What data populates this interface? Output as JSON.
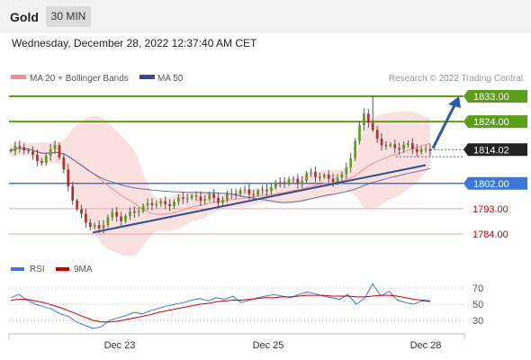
{
  "header": {
    "symbol": "Gold",
    "timeframe": "30 MIN",
    "datetime": "Wednesday, December 28, 2022 12:37:40 AM CET"
  },
  "chart_data": [
    {
      "type": "candlestick",
      "title": "Gold",
      "legend": [
        {
          "name": "MA 20 + Bollinger Bands",
          "color": "#f28e8e"
        },
        {
          "name": "MA 50",
          "color": "#2f4f8c"
        }
      ],
      "watermark": "Research © 2022 Trading Central",
      "ylim": [
        1780,
        1835
      ],
      "current_price": {
        "value": "1814.02",
        "color": "#222222"
      },
      "levels": [
        {
          "label": "1833.00",
          "value": 1833.0,
          "kind": "resistance",
          "color": "#5a9e1a"
        },
        {
          "label": "1824.00",
          "value": 1824.0,
          "kind": "resistance",
          "color": "#5a9e1a"
        },
        {
          "label": "1802.00",
          "value": 1802.0,
          "kind": "pivot",
          "color": "#3c78d8"
        },
        {
          "label": "1793.00",
          "value": 1793.0,
          "kind": "support",
          "color": "#cc0000"
        },
        {
          "label": "1784.00",
          "value": 1784.0,
          "kind": "support",
          "color": "#cc0000"
        }
      ],
      "trendline": {
        "from": 1784.5,
        "to": 1808.5,
        "color": "#2f4f8c"
      },
      "projection_arrow": {
        "from": 1814.5,
        "to": 1833.0,
        "color": "#2f5aa0"
      },
      "x_ticks": [
        "Dec 23",
        "Dec 25",
        "Dec 28"
      ],
      "price_path": [
        1813,
        1815,
        1812,
        1810,
        1816,
        1803,
        1793,
        1788,
        1785,
        1791,
        1790,
        1792,
        1793,
        1795,
        1795,
        1796,
        1797,
        1796,
        1798,
        1796,
        1798,
        1799,
        1799,
        1800,
        1801,
        1803,
        1803,
        1806,
        1804,
        1803,
        1805,
        1814,
        1827,
        1818,
        1816,
        1815,
        1815,
        1813,
        1815
      ]
    },
    {
      "type": "line",
      "title": "RSI",
      "series": [
        {
          "name": "RSI",
          "color": "#3c78d8",
          "values": [
            58,
            62,
            55,
            50,
            47,
            44,
            38,
            35,
            28,
            24,
            20,
            22,
            30,
            33,
            36,
            40,
            38,
            42,
            45,
            48,
            50,
            52,
            55,
            57,
            54,
            58,
            56,
            60,
            52,
            55,
            58,
            60,
            62,
            60,
            58,
            62,
            65,
            63,
            60,
            58,
            56,
            62,
            50,
            57,
            75,
            60,
            66,
            55,
            52,
            50,
            54,
            53
          ]
        },
        {
          "name": "9MA",
          "color": "#cc0000",
          "values": [
            55,
            56,
            56,
            54,
            52,
            49,
            46,
            42,
            38,
            34,
            30,
            28,
            28,
            29,
            31,
            33,
            35,
            37,
            40,
            42,
            44,
            46,
            48,
            50,
            51,
            53,
            54,
            55,
            55,
            56,
            57,
            58,
            58,
            59,
            59,
            60,
            61,
            61,
            61,
            60,
            60,
            60,
            59,
            59,
            60,
            61,
            61,
            60,
            58,
            56,
            55,
            54
          ]
        }
      ],
      "ylim": [
        20,
        80
      ],
      "y_ticks": [
        "70",
        "50",
        "30"
      ],
      "x_ticks": [
        "Dec 23",
        "Dec 25",
        "Dec 28"
      ]
    }
  ]
}
